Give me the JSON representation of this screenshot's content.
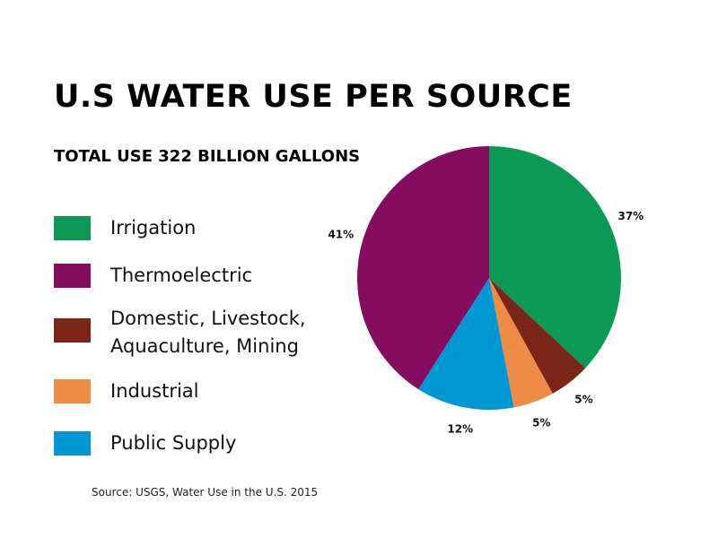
{
  "chart_data": {
    "type": "pie",
    "title": "U.S WATER USE PER SOURCE",
    "subtitle": "TOTAL USE 322 BILLION GALLONS",
    "source": "Source: USGS, Water Use in the U.S. 2015",
    "categories": [
      "Irrigation",
      "Domestic, Livestock, Aquaculture, Mining",
      "Industrial",
      "Public Supply",
      "Thermoelectric"
    ],
    "values": [
      37,
      5,
      5,
      12,
      41
    ],
    "value_labels": [
      "37%",
      "5%",
      "5%",
      "12%",
      "41%"
    ],
    "colors": [
      "#0a9a55",
      "#7b2518",
      "#ee8c45",
      "#0098d4",
      "#850c5e"
    ],
    "legend": true
  }
}
